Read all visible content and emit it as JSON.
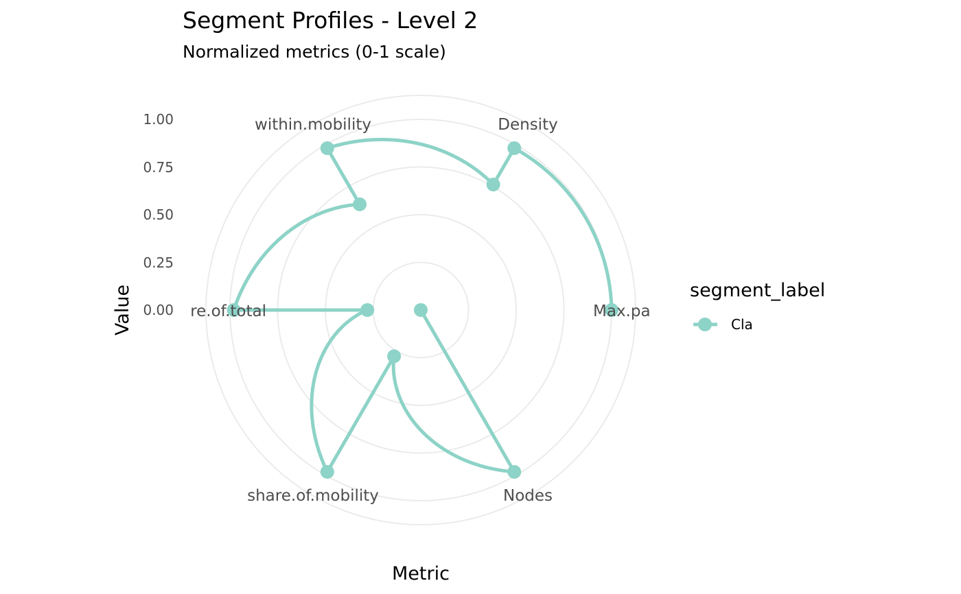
{
  "chart_data": {
    "type": "radar",
    "title": "Segment Profiles - Level 2",
    "subtitle": "Normalized metrics (0-1 scale)",
    "xlabel": "Metric",
    "ylabel": "Value",
    "ylim": [
      0,
      1
    ],
    "y_ticks": [
      "0.00",
      "0.25",
      "0.50",
      "0.75",
      "1.00"
    ],
    "categories": [
      "Max.pa",
      "Density",
      "within.mobility",
      "re.of.total",
      "share.of.mobility",
      "Nodes"
    ],
    "legend_title": "segment_label",
    "series": [
      {
        "name": "Cla",
        "color": "#8dd3c7",
        "points": [
          {
            "metric": "Max.pa",
            "value": 1.0
          },
          {
            "metric": "Density",
            "value": 0.98
          },
          {
            "metric": "Density",
            "value": 0.76
          },
          {
            "metric": "within.mobility",
            "value": 0.98
          },
          {
            "metric": "within.mobility",
            "value": 0.64
          },
          {
            "metric": "re.of.total",
            "value": 0.98
          },
          {
            "metric": "re.of.total",
            "value": 0.28
          },
          {
            "metric": "share.of.mobility",
            "value": 0.98
          },
          {
            "metric": "share.of.mobility",
            "value": 0.28
          },
          {
            "metric": "Nodes",
            "value": 0.98
          },
          {
            "metric": "Nodes",
            "value": 0.0
          }
        ]
      }
    ],
    "grid": true,
    "legend_position": "right"
  }
}
